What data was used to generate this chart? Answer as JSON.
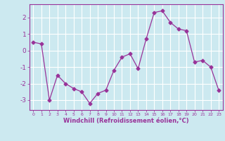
{
  "x": [
    0,
    1,
    2,
    3,
    4,
    5,
    6,
    7,
    8,
    9,
    10,
    11,
    12,
    13,
    14,
    15,
    16,
    17,
    18,
    19,
    20,
    21,
    22,
    23
  ],
  "y": [
    0.5,
    0.4,
    -3.0,
    -1.5,
    -2.0,
    -2.3,
    -2.5,
    -3.2,
    -2.6,
    -2.4,
    -1.2,
    -0.4,
    -0.2,
    -1.1,
    0.7,
    2.3,
    2.4,
    1.7,
    1.3,
    1.2,
    -0.7,
    -0.6,
    -1.0,
    -2.4
  ],
  "line_color": "#993399",
  "marker": "D",
  "markersize": 2.5,
  "linewidth": 0.9,
  "xlim": [
    -0.5,
    23.5
  ],
  "ylim": [
    -3.6,
    2.8
  ],
  "yticks": [
    -3,
    -2,
    -1,
    0,
    1,
    2
  ],
  "xticks": [
    0,
    1,
    2,
    3,
    4,
    5,
    6,
    7,
    8,
    9,
    10,
    11,
    12,
    13,
    14,
    15,
    16,
    17,
    18,
    19,
    20,
    21,
    22,
    23
  ],
  "xlabel": "Windchill (Refroidissement éolien,°C)",
  "bg_color": "#cce9f0",
  "grid_color": "#ffffff",
  "spine_color": "#993399",
  "tick_color": "#993399",
  "label_color": "#993399",
  "xlabel_fontsize": 6.0,
  "xtick_fontsize": 4.5,
  "ytick_fontsize": 6.5
}
